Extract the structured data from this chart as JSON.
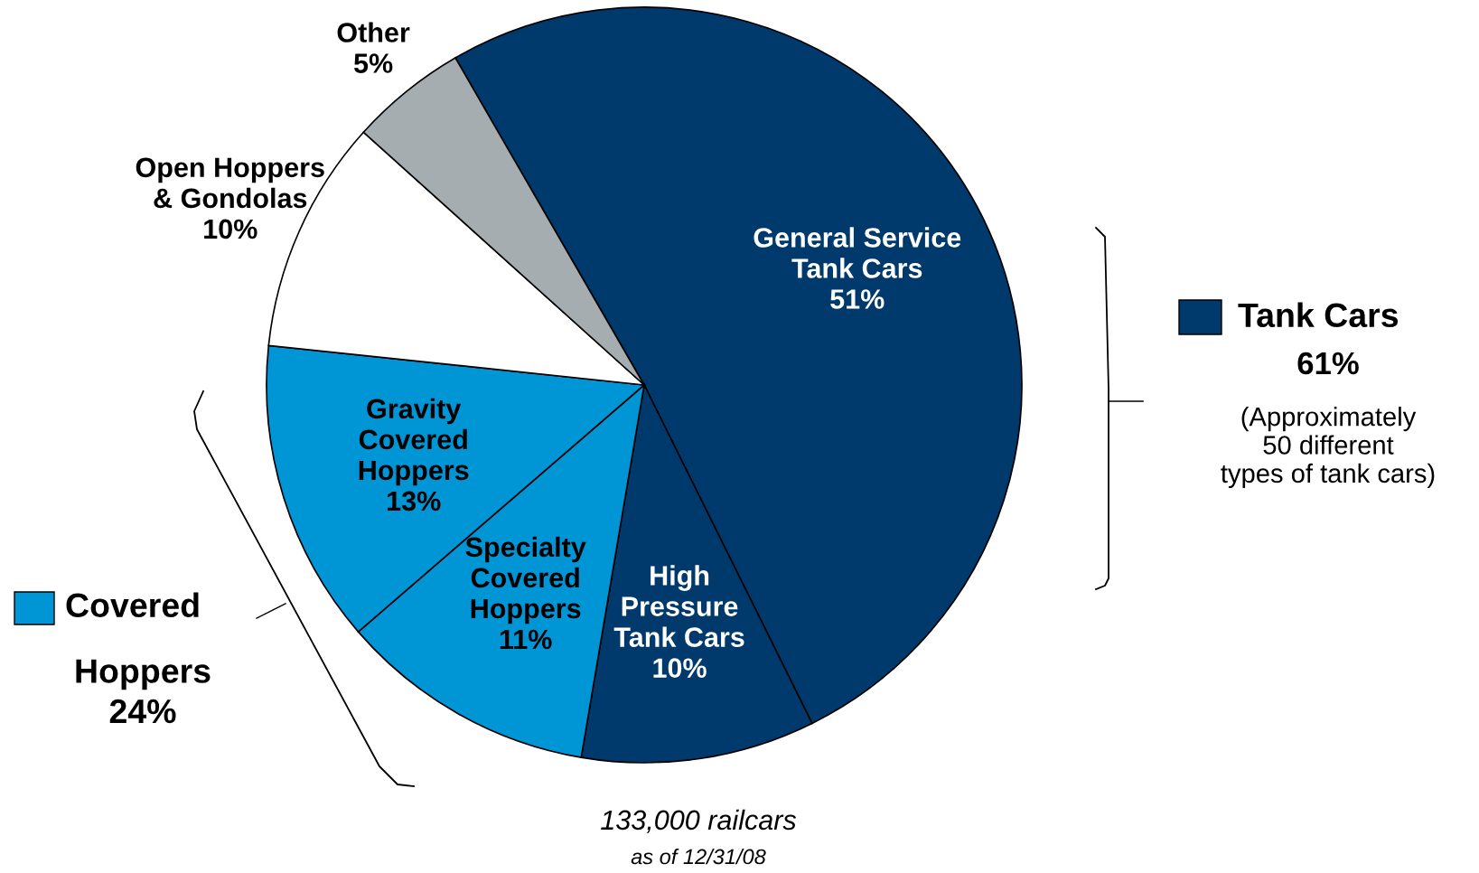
{
  "chart_data": {
    "type": "pie",
    "categories": [
      "General Service\nTank Cars",
      "High\nPressure\nTank Cars",
      "Specialty\nCovered\nHoppers",
      "Gravity\nCovered\nHoppers",
      "Open Hoppers\n& Gondolas",
      "Other"
    ],
    "values": [
      51,
      10,
      11,
      13,
      10,
      5
    ],
    "colors": [
      "#003a6c",
      "#003a6c",
      "#0095d5",
      "#0095d5",
      "#ffffff",
      "#a5adb0"
    ],
    "value_labels": [
      "51%",
      "10%",
      "11%",
      "13%",
      "10%",
      "5%"
    ],
    "annotations": [
      "Tank Cars",
      "61%",
      "(Approximately\n50 different\ntypes of tank cars)",
      "Covered\nHoppers\n24%",
      "133,000 railcars",
      "as of 12/31/08"
    ]
  }
}
